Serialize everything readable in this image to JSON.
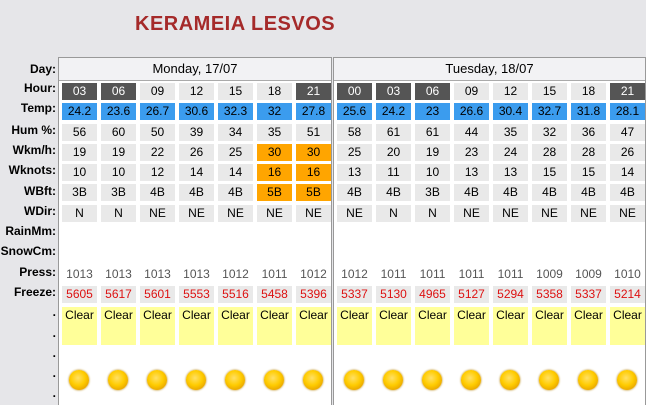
{
  "title": "KERAMEIA LESVOS",
  "row_labels": {
    "day": "Day:",
    "hour": "Hour:",
    "temp": "Temp:",
    "hum": "Hum %:",
    "wkmh": "Wkm/h:",
    "wknots": "Wknots:",
    "wbft": "WBft:",
    "wdir": "WDir:",
    "rain": "RainMm:",
    "snow": "SnowCm:",
    "press": "Press:",
    "freeze": "Freeze:",
    "dot1": ".",
    "dot2": ".",
    "dot3": ".",
    "dot4": ".",
    "dot5": "."
  },
  "days": [
    {
      "label": "Monday, 17/07",
      "hours": [
        "03",
        "06",
        "09",
        "12",
        "15",
        "18",
        "21"
      ],
      "hour_dark": [
        true,
        true,
        false,
        false,
        false,
        false,
        true
      ],
      "temp": [
        "24.2",
        "23.6",
        "26.7",
        "30.6",
        "32.3",
        "32",
        "27.8"
      ],
      "hum": [
        "56",
        "60",
        "50",
        "39",
        "34",
        "35",
        "51"
      ],
      "wkmh": [
        "19",
        "19",
        "22",
        "26",
        "25",
        "30",
        "30"
      ],
      "wknots": [
        "10",
        "10",
        "12",
        "14",
        "14",
        "16",
        "16"
      ],
      "wbft": [
        "3B",
        "3B",
        "4B",
        "4B",
        "4B",
        "5B",
        "5B"
      ],
      "wind_strong": [
        false,
        false,
        false,
        false,
        false,
        true,
        true
      ],
      "wdir": [
        "N",
        "N",
        "NE",
        "NE",
        "NE",
        "NE",
        "NE"
      ],
      "press": [
        "1013",
        "1013",
        "1013",
        "1013",
        "1012",
        "1011",
        "1012"
      ],
      "freeze": [
        "5605",
        "5617",
        "5601",
        "5553",
        "5516",
        "5458",
        "5396"
      ],
      "sky": [
        "Clear",
        "Clear",
        "Clear",
        "Clear",
        "Clear",
        "Clear",
        "Clear"
      ],
      "icon": [
        "sun-icon",
        "sun-icon",
        "sun-icon",
        "sun-icon",
        "sun-icon",
        "sun-icon",
        "sun-icon"
      ]
    },
    {
      "label": "Tuesday, 18/07",
      "hours": [
        "00",
        "03",
        "06",
        "09",
        "12",
        "15",
        "18",
        "21"
      ],
      "hour_dark": [
        true,
        true,
        true,
        false,
        false,
        false,
        false,
        true
      ],
      "temp": [
        "25.6",
        "24.2",
        "23",
        "26.6",
        "30.4",
        "32.7",
        "31.8",
        "28.1"
      ],
      "hum": [
        "58",
        "61",
        "61",
        "44",
        "35",
        "32",
        "36",
        "47"
      ],
      "wkmh": [
        "25",
        "20",
        "19",
        "23",
        "24",
        "28",
        "28",
        "26"
      ],
      "wknots": [
        "13",
        "11",
        "10",
        "13",
        "13",
        "15",
        "15",
        "14"
      ],
      "wbft": [
        "4B",
        "4B",
        "3B",
        "4B",
        "4B",
        "4B",
        "4B",
        "4B"
      ],
      "wind_strong": [
        false,
        false,
        false,
        false,
        false,
        false,
        false,
        false
      ],
      "wdir": [
        "NE",
        "N",
        "N",
        "NE",
        "NE",
        "NE",
        "NE",
        "NE"
      ],
      "press": [
        "1012",
        "1011",
        "1011",
        "1011",
        "1011",
        "1009",
        "1009",
        "1010"
      ],
      "freeze": [
        "5337",
        "5130",
        "4965",
        "5127",
        "5294",
        "5358",
        "5337",
        "5214"
      ],
      "sky": [
        "Clear",
        "Clear",
        "Clear",
        "Clear",
        "Clear",
        "Clear",
        "Clear",
        "Clear"
      ],
      "icon": [
        "sun-icon",
        "sun-icon",
        "sun-icon",
        "sun-icon",
        "sun-icon",
        "sun-icon",
        "sun-icon",
        "sun-icon"
      ]
    }
  ]
}
